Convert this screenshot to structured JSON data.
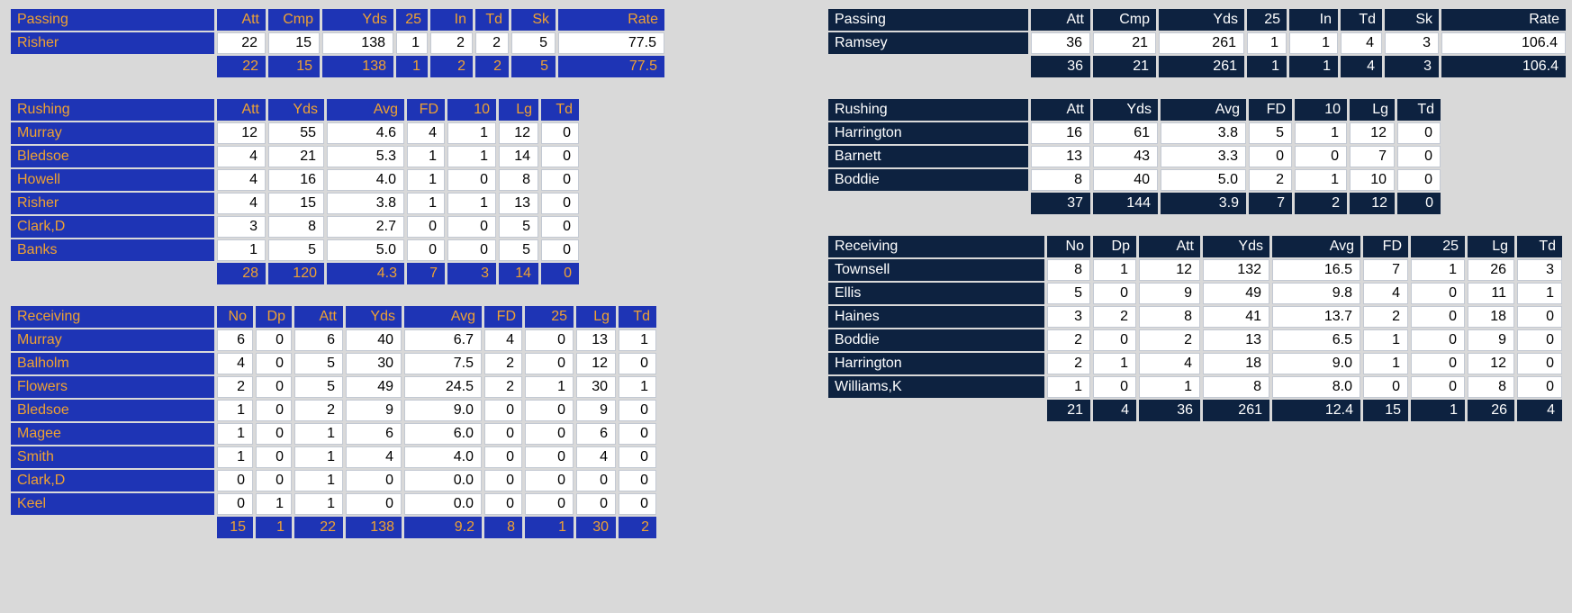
{
  "page": {
    "background_color": "#d9d9d9"
  },
  "teams": [
    {
      "id": "left",
      "colors": {
        "header_bg": "#1e34b5",
        "header_fg": "#f0a232",
        "cell_bg": "#ffffff",
        "cell_fg": "#000000"
      },
      "sections": [
        {
          "kind": "passing",
          "title": "Passing",
          "columns": [
            "Att",
            "Cmp",
            "Yds",
            "25",
            "In",
            "Td",
            "Sk",
            "Rate"
          ],
          "rows": [
            {
              "name": "Risher",
              "values": [
                "22",
                "15",
                "138",
                "1",
                "2",
                "2",
                "5",
                "77.5"
              ]
            }
          ],
          "totals": [
            "22",
            "15",
            "138",
            "1",
            "2",
            "2",
            "5",
            "77.5"
          ]
        },
        {
          "kind": "rushing",
          "title": "Rushing",
          "columns": [
            "Att",
            "Yds",
            "Avg",
            "FD",
            "10",
            "Lg",
            "Td"
          ],
          "rows": [
            {
              "name": "Murray",
              "values": [
                "12",
                "55",
                "4.6",
                "4",
                "1",
                "12",
                "0"
              ]
            },
            {
              "name": "Bledsoe",
              "values": [
                "4",
                "21",
                "5.3",
                "1",
                "1",
                "14",
                "0"
              ]
            },
            {
              "name": "Howell",
              "values": [
                "4",
                "16",
                "4.0",
                "1",
                "0",
                "8",
                "0"
              ]
            },
            {
              "name": "Risher",
              "values": [
                "4",
                "15",
                "3.8",
                "1",
                "1",
                "13",
                "0"
              ]
            },
            {
              "name": "Clark,D",
              "values": [
                "3",
                "8",
                "2.7",
                "0",
                "0",
                "5",
                "0"
              ]
            },
            {
              "name": "Banks",
              "values": [
                "1",
                "5",
                "5.0",
                "0",
                "0",
                "5",
                "0"
              ]
            }
          ],
          "totals": [
            "28",
            "120",
            "4.3",
            "7",
            "3",
            "14",
            "0"
          ]
        },
        {
          "kind": "receiving",
          "title": "Receiving",
          "columns": [
            "No",
            "Dp",
            "Att",
            "Yds",
            "Avg",
            "FD",
            "25",
            "Lg",
            "Td"
          ],
          "rows": [
            {
              "name": "Murray",
              "values": [
                "6",
                "0",
                "6",
                "40",
                "6.7",
                "4",
                "0",
                "13",
                "1"
              ]
            },
            {
              "name": "Balholm",
              "values": [
                "4",
                "0",
                "5",
                "30",
                "7.5",
                "2",
                "0",
                "12",
                "0"
              ]
            },
            {
              "name": "Flowers",
              "values": [
                "2",
                "0",
                "5",
                "49",
                "24.5",
                "2",
                "1",
                "30",
                "1"
              ]
            },
            {
              "name": "Bledsoe",
              "values": [
                "1",
                "0",
                "2",
                "9",
                "9.0",
                "0",
                "0",
                "9",
                "0"
              ]
            },
            {
              "name": "Magee",
              "values": [
                "1",
                "0",
                "1",
                "6",
                "6.0",
                "0",
                "0",
                "6",
                "0"
              ]
            },
            {
              "name": "Smith",
              "values": [
                "1",
                "0",
                "1",
                "4",
                "4.0",
                "0",
                "0",
                "4",
                "0"
              ]
            },
            {
              "name": "Clark,D",
              "values": [
                "0",
                "0",
                "1",
                "0",
                "0.0",
                "0",
                "0",
                "0",
                "0"
              ]
            },
            {
              "name": "Keel",
              "values": [
                "0",
                "1",
                "1",
                "0",
                "0.0",
                "0",
                "0",
                "0",
                "0"
              ]
            }
          ],
          "totals": [
            "15",
            "1",
            "22",
            "138",
            "9.2",
            "8",
            "1",
            "30",
            "2"
          ]
        }
      ]
    },
    {
      "id": "right",
      "colors": {
        "header_bg": "#0d2240",
        "header_fg": "#ffffff",
        "cell_bg": "#ffffff",
        "cell_fg": "#000000"
      },
      "sections": [
        {
          "kind": "passing",
          "title": "Passing",
          "columns": [
            "Att",
            "Cmp",
            "Yds",
            "25",
            "In",
            "Td",
            "Sk",
            "Rate"
          ],
          "rows": [
            {
              "name": "Ramsey",
              "values": [
                "36",
                "21",
                "261",
                "1",
                "1",
                "4",
                "3",
                "106.4"
              ]
            }
          ],
          "totals": [
            "36",
            "21",
            "261",
            "1",
            "1",
            "4",
            "3",
            "106.4"
          ]
        },
        {
          "kind": "rushing",
          "title": "Rushing",
          "columns": [
            "Att",
            "Yds",
            "Avg",
            "FD",
            "10",
            "Lg",
            "Td"
          ],
          "rows": [
            {
              "name": "Harrington",
              "values": [
                "16",
                "61",
                "3.8",
                "5",
                "1",
                "12",
                "0"
              ]
            },
            {
              "name": "Barnett",
              "values": [
                "13",
                "43",
                "3.3",
                "0",
                "0",
                "7",
                "0"
              ]
            },
            {
              "name": "Boddie",
              "values": [
                "8",
                "40",
                "5.0",
                "2",
                "1",
                "10",
                "0"
              ]
            }
          ],
          "totals": [
            "37",
            "144",
            "3.9",
            "7",
            "2",
            "12",
            "0"
          ]
        },
        {
          "kind": "receiving",
          "title": "Receiving",
          "columns": [
            "No",
            "Dp",
            "Att",
            "Yds",
            "Avg",
            "FD",
            "25",
            "Lg",
            "Td"
          ],
          "rows": [
            {
              "name": "Townsell",
              "values": [
                "8",
                "1",
                "12",
                "132",
                "16.5",
                "7",
                "1",
                "26",
                "3"
              ]
            },
            {
              "name": "Ellis",
              "values": [
                "5",
                "0",
                "9",
                "49",
                "9.8",
                "4",
                "0",
                "11",
                "1"
              ]
            },
            {
              "name": "Haines",
              "values": [
                "3",
                "2",
                "8",
                "41",
                "13.7",
                "2",
                "0",
                "18",
                "0"
              ]
            },
            {
              "name": "Boddie",
              "values": [
                "2",
                "0",
                "2",
                "13",
                "6.5",
                "1",
                "0",
                "9",
                "0"
              ]
            },
            {
              "name": "Harrington",
              "values": [
                "2",
                "1",
                "4",
                "18",
                "9.0",
                "1",
                "0",
                "12",
                "0"
              ]
            },
            {
              "name": "Williams,K",
              "values": [
                "1",
                "0",
                "1",
                "8",
                "8.0",
                "0",
                "0",
                "8",
                "0"
              ]
            }
          ],
          "totals": [
            "21",
            "4",
            "36",
            "261",
            "12.4",
            "15",
            "1",
            "26",
            "4"
          ]
        }
      ]
    }
  ]
}
